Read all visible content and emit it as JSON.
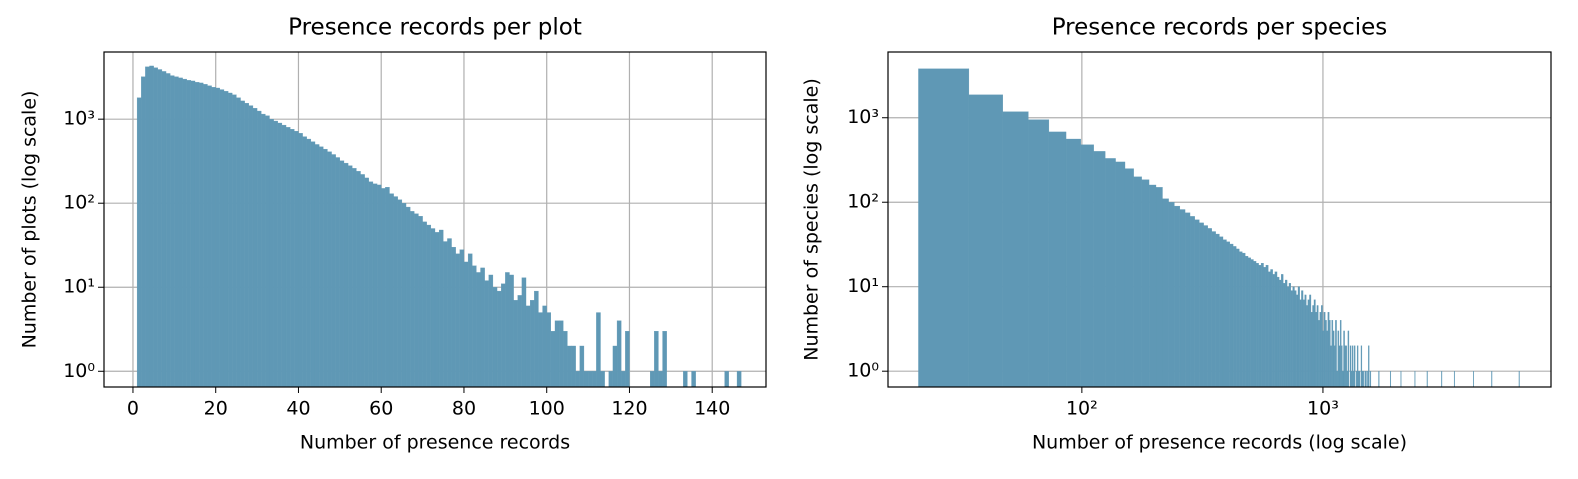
{
  "chart_data": [
    {
      "type": "histogram",
      "title": "Presence records per plot",
      "xlabel": "Number of presence records",
      "ylabel": "Number of plots (log scale)",
      "color": "#5f98b5",
      "ylog": true,
      "xlog": false,
      "grid": true,
      "xlim": [
        -7,
        153
      ],
      "ylim": [
        0.65,
        6300
      ],
      "xticks": [
        0,
        20,
        40,
        60,
        80,
        100,
        120,
        140
      ],
      "yticks": [
        {
          "value": 1,
          "label": "10⁰"
        },
        {
          "value": 10,
          "label": "10¹"
        },
        {
          "value": 100,
          "label": "10²"
        },
        {
          "value": 1000,
          "label": "10³"
        }
      ],
      "bins": [
        1,
        2,
        3,
        4,
        5,
        6,
        7,
        8,
        9,
        10,
        11,
        12,
        13,
        14,
        15,
        16,
        17,
        18,
        19,
        20,
        21,
        22,
        23,
        24,
        25,
        26,
        27,
        28,
        29,
        30,
        31,
        32,
        33,
        34,
        35,
        36,
        37,
        38,
        39,
        40,
        41,
        42,
        43,
        44,
        45,
        46,
        47,
        48,
        49,
        50,
        51,
        52,
        53,
        54,
        55,
        56,
        57,
        58,
        59,
        60,
        61,
        62,
        63,
        64,
        65,
        66,
        67,
        68,
        69,
        70,
        71,
        72,
        73,
        74,
        75,
        76,
        77,
        78,
        79,
        80,
        81,
        82,
        83,
        84,
        85,
        86,
        87,
        88,
        89,
        90,
        91,
        92,
        93,
        94,
        95,
        96,
        97,
        98,
        99,
        100,
        101,
        102,
        103,
        104,
        105,
        106,
        107,
        108,
        109,
        110,
        111,
        112,
        113,
        114,
        115,
        116,
        117,
        118,
        119,
        120,
        121,
        122,
        123,
        124,
        125,
        126,
        127,
        128,
        129,
        130,
        131,
        132,
        133,
        134,
        135,
        136,
        137,
        138,
        139,
        140,
        141,
        142,
        143,
        144,
        145,
        146,
        147
      ],
      "counts": [
        1800,
        3200,
        4200,
        4300,
        4100,
        3900,
        3700,
        3500,
        3300,
        3200,
        3100,
        3000,
        2900,
        2850,
        2750,
        2700,
        2600,
        2500,
        2400,
        2350,
        2250,
        2150,
        2050,
        1950,
        1800,
        1650,
        1550,
        1450,
        1350,
        1250,
        1150,
        1100,
        1000,
        950,
        900,
        850,
        800,
        760,
        720,
        680,
        620,
        580,
        540,
        500,
        470,
        440,
        410,
        380,
        350,
        320,
        300,
        280,
        260,
        240,
        220,
        200,
        180,
        170,
        165,
        150,
        155,
        130,
        120,
        110,
        100,
        90,
        80,
        75,
        70,
        60,
        55,
        50,
        45,
        48,
        35,
        38,
        30,
        25,
        28,
        20,
        25,
        18,
        15,
        17,
        12,
        14,
        10,
        9,
        11,
        15,
        14,
        7,
        8,
        13,
        6,
        7,
        9,
        5,
        6,
        5,
        3,
        4,
        4,
        3,
        2,
        2,
        1,
        2,
        1,
        1,
        1,
        5,
        1,
        0,
        1,
        2,
        4,
        1,
        3,
        0,
        0,
        0,
        0,
        0,
        1,
        3,
        1,
        3,
        0,
        0,
        0,
        0,
        1,
        0,
        1,
        0,
        0,
        0,
        0,
        0,
        0,
        0,
        1,
        0,
        0,
        1
      ]
    },
    {
      "type": "histogram",
      "title": "Presence records per species",
      "xlabel": "Number of presence records (log scale)",
      "ylabel": "Number of species (log scale)",
      "color": "#5f98b5",
      "ylog": true,
      "xlog": true,
      "grid": true,
      "xlim": [
        15.7,
        8830
      ],
      "ylim": [
        0.65,
        6000
      ],
      "xticks": [
        {
          "value": 100,
          "label": "10²"
        },
        {
          "value": 1000,
          "label": "10³"
        }
      ],
      "yticks": [
        {
          "value": 1,
          "label": "10⁰"
        },
        {
          "value": 10,
          "label": "10¹"
        },
        {
          "value": 100,
          "label": "10²"
        },
        {
          "value": 1000,
          "label": "10³"
        }
      ],
      "bins": [
        21,
        34,
        47,
        60,
        73,
        86,
        99,
        112,
        125,
        138,
        151,
        164,
        177,
        190,
        203,
        216,
        229,
        242,
        255,
        268,
        281,
        294,
        307,
        320,
        333,
        346,
        359,
        372,
        385,
        398,
        411,
        424,
        437,
        450,
        463,
        476,
        489,
        502,
        515,
        528,
        541,
        554,
        567,
        580,
        593,
        606,
        619,
        632,
        645,
        658,
        671,
        684,
        697,
        710,
        723,
        736,
        749,
        762,
        775,
        788,
        801,
        814,
        827,
        840,
        853,
        866,
        879,
        892,
        905,
        918,
        931,
        944,
        957,
        970,
        983,
        996,
        1009,
        1022,
        1035,
        1048,
        1061,
        1074,
        1087,
        1100,
        1113,
        1126,
        1139,
        1152,
        1165,
        1178,
        1191,
        1204,
        1217,
        1230,
        1243,
        1256,
        1269,
        1282,
        1295,
        1308,
        1321,
        1334,
        1347,
        1360,
        1373,
        1386,
        1399,
        1412,
        1425,
        1438,
        1451,
        1464,
        1477,
        1490,
        1503,
        1516,
        1529,
        1542,
        1555,
        1568,
        1581,
        1700,
        1713,
        1900,
        1913,
        2100,
        2113,
        2400,
        2413,
        2700,
        2713,
        3100,
        3113,
        3500,
        3513,
        4200,
        4213,
        5000,
        5013,
        6500,
        6513,
        7000
      ],
      "counts": [
        3800,
        1870,
        1180,
        950,
        680,
        560,
        480,
        400,
        330,
        300,
        250,
        200,
        185,
        160,
        150,
        110,
        100,
        90,
        82,
        75,
        68,
        62,
        57,
        53,
        49,
        45,
        42,
        39,
        36,
        34,
        32,
        30,
        28,
        26,
        25,
        23,
        22,
        21,
        20,
        19,
        18,
        19,
        17,
        18,
        15,
        16,
        14,
        15,
        13,
        12,
        14,
        11,
        12,
        10,
        11,
        9,
        10,
        9,
        8,
        10,
        7,
        9,
        7,
        8,
        6,
        7,
        8,
        5,
        6,
        7,
        5,
        6,
        4,
        5,
        6,
        3,
        5,
        4,
        3,
        5,
        4,
        2,
        4,
        3,
        2,
        4,
        1,
        3,
        2,
        4,
        2,
        1,
        3,
        2,
        2,
        1,
        3,
        0,
        2,
        1,
        2,
        1,
        2,
        0,
        1,
        2,
        1,
        1,
        0,
        2,
        1,
        1,
        0,
        1,
        1,
        0,
        1,
        2,
        0,
        1,
        0,
        1,
        0,
        1,
        0,
        1,
        0,
        1,
        0,
        1,
        0,
        1,
        0,
        1,
        0,
        1,
        0,
        1,
        0,
        1,
        0
      ]
    }
  ]
}
